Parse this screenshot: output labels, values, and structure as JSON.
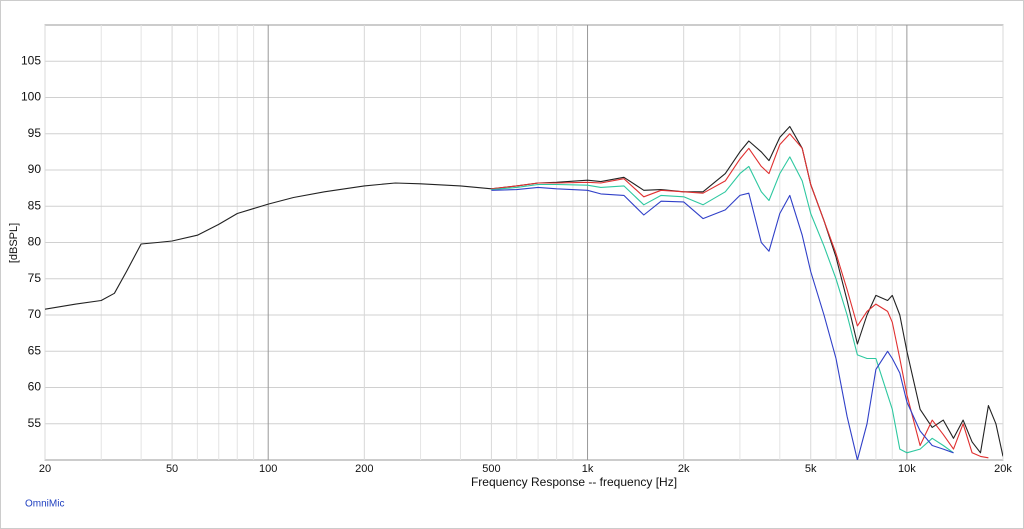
{
  "chart_data": {
    "type": "line",
    "y_label": "[dBSPL]",
    "x_label": "Frequency Response -- frequency [Hz]",
    "footer": "OmniMic",
    "xscale": "log",
    "grid": true,
    "xlim": [
      20,
      20000
    ],
    "ylim": [
      50,
      110
    ],
    "xticks": [
      20,
      50,
      100,
      200,
      500,
      {
        "value": 1000,
        "label": "1k"
      },
      {
        "value": 2000,
        "label": "2k"
      },
      {
        "value": 5000,
        "label": "5k"
      },
      {
        "value": 10000,
        "label": "10k"
      },
      {
        "value": 20000,
        "label": "20k"
      }
    ],
    "yticks": [
      55,
      60,
      65,
      70,
      75,
      80,
      85,
      90,
      95,
      100,
      105
    ],
    "x": [
      20,
      25,
      30,
      33,
      36,
      40,
      45,
      50,
      60,
      70,
      80,
      100,
      120,
      150,
      200,
      250,
      300,
      400,
      500,
      600,
      700,
      800,
      1000,
      1100,
      1300,
      1500,
      1700,
      2000,
      2300,
      2700,
      3000,
      3200,
      3500,
      3700,
      4000,
      4300,
      4700,
      5000,
      5500,
      6000,
      6500,
      7000,
      7500,
      8000,
      8700,
      9000,
      9500,
      10000,
      11000,
      12000,
      13000,
      14000,
      15000,
      16000,
      17000,
      18000,
      19000,
      20000
    ],
    "series": [
      {
        "color": "#222222",
        "values": [
          70.8,
          71.5,
          72.0,
          73.0,
          76.0,
          79.8,
          80.0,
          80.2,
          81.0,
          82.5,
          84.0,
          85.3,
          86.2,
          87.0,
          87.8,
          88.2,
          88.1,
          87.8,
          87.4,
          87.8,
          88.2,
          88.3,
          88.6,
          88.4,
          89.0,
          87.2,
          87.3,
          87.0,
          87.0,
          89.5,
          92.5,
          94.0,
          92.5,
          91.3,
          94.5,
          96.0,
          93.0,
          88.0,
          83.0,
          78.0,
          72.0,
          66.0,
          70.0,
          72.7,
          72.0,
          72.7,
          70.0,
          65.0,
          57.0,
          54.5,
          55.5,
          53.0,
          55.5,
          52.5,
          51.0,
          57.5,
          55.0,
          50.5
        ]
      },
      {
        "color": "#e03030",
        "values": [
          null,
          null,
          null,
          null,
          null,
          null,
          null,
          null,
          null,
          null,
          null,
          null,
          null,
          null,
          null,
          null,
          null,
          null,
          87.4,
          87.8,
          88.2,
          88.2,
          88.3,
          88.2,
          88.8,
          86.3,
          87.2,
          87.0,
          86.8,
          88.5,
          91.5,
          93.0,
          90.5,
          89.5,
          93.5,
          95.0,
          93.0,
          88.0,
          83.0,
          78.5,
          73.5,
          68.5,
          70.5,
          71.5,
          70.5,
          69.0,
          64.0,
          59.0,
          52.0,
          55.5,
          53.5,
          51.5,
          55.0,
          51.0,
          50.5,
          50.3,
          null,
          null
        ]
      },
      {
        "color": "#2ec8a0",
        "values": [
          null,
          null,
          null,
          null,
          null,
          null,
          null,
          null,
          null,
          null,
          null,
          null,
          null,
          null,
          null,
          null,
          null,
          null,
          87.3,
          87.6,
          88.0,
          88.0,
          87.9,
          87.6,
          87.8,
          85.2,
          86.5,
          86.3,
          85.2,
          87.0,
          89.5,
          90.5,
          87.0,
          85.8,
          89.5,
          91.8,
          88.5,
          84.0,
          79.5,
          75.0,
          70.0,
          64.5,
          64.0,
          64.0,
          59.0,
          57.0,
          51.5,
          51.0,
          51.5,
          53.0,
          52.0,
          51.0,
          null,
          null,
          null,
          null,
          null,
          null
        ]
      },
      {
        "color": "#3040c8",
        "values": [
          null,
          null,
          null,
          null,
          null,
          null,
          null,
          null,
          null,
          null,
          null,
          null,
          null,
          null,
          null,
          null,
          null,
          null,
          87.2,
          87.3,
          87.6,
          87.4,
          87.2,
          86.7,
          86.5,
          83.8,
          85.7,
          85.6,
          83.3,
          84.5,
          86.5,
          86.8,
          80.0,
          78.8,
          84.0,
          86.5,
          81.0,
          76.0,
          70.0,
          64.0,
          56.0,
          50.0,
          55.0,
          62.5,
          65.0,
          64.0,
          62.0,
          58.0,
          54.0,
          52.0,
          51.5,
          51.0,
          null,
          null,
          null,
          null,
          null,
          null
        ]
      }
    ]
  }
}
